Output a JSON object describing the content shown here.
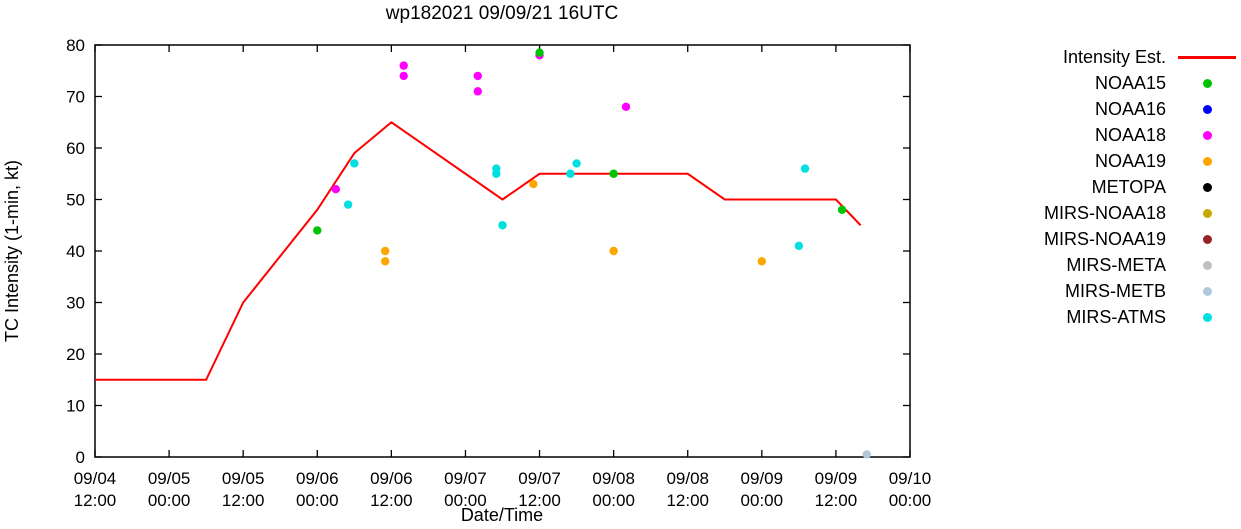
{
  "chart_data": {
    "type": "line",
    "title": "wp182021 09/09/21 16UTC",
    "xlabel": "Date/Time",
    "ylabel": "TC Intensity (1-min, kt)",
    "x_origin": "09/04 12:00",
    "x_unit": "hours since 09/04 12:00",
    "xlim": [
      0,
      132
    ],
    "ylim": [
      0,
      80
    ],
    "grid": false,
    "legend_position": "right",
    "y_ticks": [
      0,
      10,
      20,
      30,
      40,
      50,
      60,
      70,
      80
    ],
    "x_ticks": [
      {
        "hour": 0,
        "date": "09/04",
        "time": "12:00"
      },
      {
        "hour": 12,
        "date": "09/05",
        "time": "00:00"
      },
      {
        "hour": 24,
        "date": "09/05",
        "time": "12:00"
      },
      {
        "hour": 36,
        "date": "09/06",
        "time": "00:00"
      },
      {
        "hour": 48,
        "date": "09/06",
        "time": "12:00"
      },
      {
        "hour": 60,
        "date": "09/07",
        "time": "00:00"
      },
      {
        "hour": 72,
        "date": "09/07",
        "time": "12:00"
      },
      {
        "hour": 84,
        "date": "09/08",
        "time": "00:00"
      },
      {
        "hour": 96,
        "date": "09/08",
        "time": "12:00"
      },
      {
        "hour": 108,
        "date": "09/09",
        "time": "00:00"
      },
      {
        "hour": 120,
        "date": "09/09",
        "time": "12:00"
      },
      {
        "hour": 132,
        "date": "09/10",
        "time": "00:00"
      }
    ],
    "series": [
      {
        "name": "Intensity Est.",
        "type": "line",
        "color": "#ff0000",
        "points": [
          [
            0,
            15
          ],
          [
            18,
            15
          ],
          [
            24,
            30
          ],
          [
            36,
            48
          ],
          [
            42,
            59
          ],
          [
            48,
            65
          ],
          [
            66,
            50
          ],
          [
            72,
            55
          ],
          [
            96,
            55
          ],
          [
            102,
            50
          ],
          [
            120,
            50
          ],
          [
            124,
            45
          ]
        ]
      },
      {
        "name": "NOAA15",
        "type": "scatter",
        "color": "#00c400",
        "points": [
          [
            36,
            44
          ],
          [
            72,
            78.5
          ],
          [
            84,
            55
          ],
          [
            121,
            48
          ]
        ]
      },
      {
        "name": "NOAA16",
        "type": "scatter",
        "color": "#0000ff",
        "points": []
      },
      {
        "name": "NOAA18",
        "type": "scatter",
        "color": "#ff00ff",
        "points": [
          [
            39,
            52
          ],
          [
            50,
            76
          ],
          [
            50,
            74
          ],
          [
            62,
            74
          ],
          [
            62,
            71
          ],
          [
            72,
            78
          ],
          [
            86,
            68
          ]
        ]
      },
      {
        "name": "NOAA19",
        "type": "scatter",
        "color": "#ffa500",
        "points": [
          [
            47,
            40
          ],
          [
            47,
            38
          ],
          [
            71,
            53
          ],
          [
            84,
            40
          ],
          [
            108,
            38
          ]
        ]
      },
      {
        "name": "METOPA",
        "type": "scatter",
        "color": "#000000",
        "points": []
      },
      {
        "name": "MIRS-NOAA18",
        "type": "scatter",
        "color": "#c8a800",
        "points": []
      },
      {
        "name": "MIRS-NOAA19",
        "type": "scatter",
        "color": "#992222",
        "points": []
      },
      {
        "name": "MIRS-META",
        "type": "scatter",
        "color": "#c0c0c0",
        "points": []
      },
      {
        "name": "MIRS-METB",
        "type": "scatter",
        "color": "#b0c8dc",
        "points": [
          [
            125,
            0.5
          ]
        ]
      },
      {
        "name": "MIRS-ATMS",
        "type": "scatter",
        "color": "#00e0e0",
        "points": [
          [
            41,
            49
          ],
          [
            42,
            57
          ],
          [
            65,
            56
          ],
          [
            65,
            55
          ],
          [
            66,
            45
          ],
          [
            77,
            55
          ],
          [
            78,
            57
          ],
          [
            114,
            41
          ],
          [
            115,
            56
          ]
        ]
      }
    ]
  }
}
